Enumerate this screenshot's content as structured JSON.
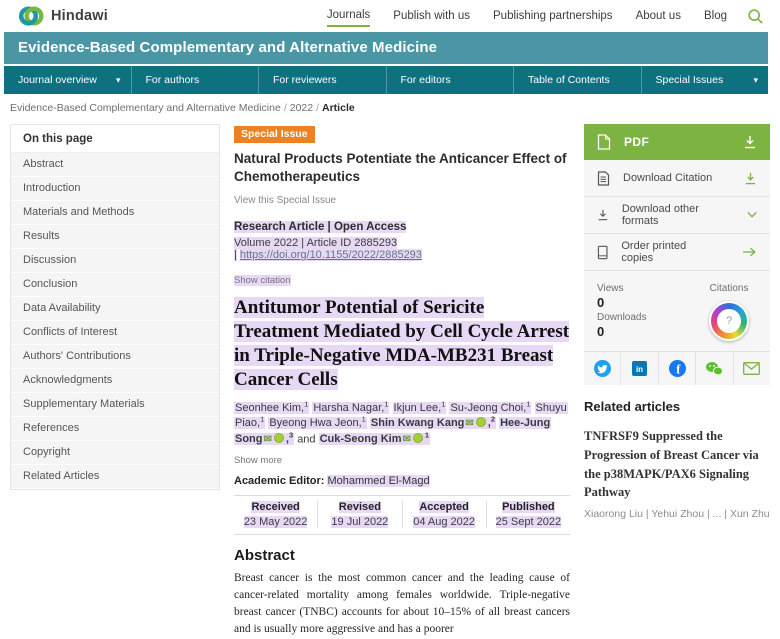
{
  "colors": {
    "accent_green": "#7db343",
    "banner_teal": "#4a96a4",
    "nav_teal": "#0e7180",
    "badge_orange": "#ee8223",
    "highlight_lavender": "#e7d9f5",
    "twitter_blue": "#1da1f2",
    "linkedin_blue": "#0a77b5",
    "facebook_blue": "#1877f2",
    "wechat_green": "#57c22d"
  },
  "icons": {
    "chevron_down": "▾",
    "envelope": "✉",
    "arrow_right": "→"
  },
  "header": {
    "brand": "Hindawi",
    "nav": [
      {
        "label": "Journals",
        "active": true
      },
      {
        "label": "Publish with us",
        "active": false
      },
      {
        "label": "Publishing partnerships",
        "active": false
      },
      {
        "label": "About us",
        "active": false
      },
      {
        "label": "Blog",
        "active": false
      }
    ]
  },
  "journal": {
    "title": "Evidence-Based Complementary and Alternative Medicine"
  },
  "journal_nav": {
    "items": [
      {
        "label": "Journal overview",
        "chevron": true
      },
      {
        "label": "For authors",
        "chevron": false
      },
      {
        "label": "For reviewers",
        "chevron": false
      },
      {
        "label": "For editors",
        "chevron": false
      },
      {
        "label": "Table of Contents",
        "chevron": false
      },
      {
        "label": "Special Issues",
        "chevron": true
      }
    ]
  },
  "breadcrumb": {
    "parts": [
      {
        "label": "Evidence-Based Complementary and Alternative Medicine",
        "bold": false
      },
      {
        "label": "2022",
        "bold": false
      },
      {
        "label": "Article",
        "bold": true
      }
    ]
  },
  "sidebar": {
    "header": "On this page",
    "items": [
      "Abstract",
      "Introduction",
      "Materials and Methods",
      "Results",
      "Discussion",
      "Conclusion",
      "Data Availability",
      "Conflicts of Interest",
      "Authors' Contributions",
      "Acknowledgments",
      "Supplementary Materials",
      "References",
      "Copyright",
      "Related Articles"
    ]
  },
  "article": {
    "special_issue_badge": "Special Issue",
    "special_issue_title": "Natural Products Potentiate the Anticancer Effect of Chemotherapeutics",
    "special_issue_link": "View this Special Issue",
    "meta_line1": "Research Article | Open Access",
    "meta_line2_prefix": "Volume 2022 | Article ID 2885293 |",
    "doi": "https://doi.org/10.1155/2022/2885293",
    "show_citation": "Show citation",
    "title": "Antitumor Potential of Sericite Treatment Mediated by Cell Cycle Arrest in Triple-Negative MDA-MB231 Breast Cancer Cells",
    "authors": [
      {
        "name": "Seonhee Kim",
        "sup": "1",
        "comma": true,
        "bold": false,
        "mail": false,
        "orcid": false,
        "prefix": ""
      },
      {
        "name": "Harsha Nagar",
        "sup": "1",
        "comma": true,
        "bold": false,
        "mail": false,
        "orcid": false,
        "prefix": ""
      },
      {
        "name": "Ikjun Lee",
        "sup": "1",
        "comma": true,
        "bold": false,
        "mail": false,
        "orcid": false,
        "prefix": ""
      },
      {
        "name": "Su-Jeong Choi",
        "sup": "1",
        "comma": true,
        "bold": false,
        "mail": false,
        "orcid": false,
        "prefix": ""
      },
      {
        "name": "Shuyu Piao",
        "sup": "1",
        "comma": true,
        "bold": false,
        "mail": false,
        "orcid": false,
        "prefix": ""
      },
      {
        "name": "Byeong Hwa Jeon",
        "sup": "1",
        "comma": true,
        "bold": false,
        "mail": false,
        "orcid": false,
        "prefix": ""
      },
      {
        "name": "Shin Kwang Kang",
        "sup": "2",
        "comma": true,
        "bold": true,
        "mail": true,
        "orcid": true,
        "prefix": ""
      },
      {
        "name": "Hee-Jung Song",
        "sup": "3",
        "comma": true,
        "bold": true,
        "mail": true,
        "orcid": true,
        "prefix": ""
      },
      {
        "name": "Cuk-Seong Kim",
        "sup": "1",
        "comma": false,
        "bold": true,
        "mail": true,
        "orcid": true,
        "prefix": "and "
      }
    ],
    "show_more": "Show more",
    "editor_label": "Academic Editor:",
    "editor_name": "Mohammed El-Magd",
    "dates": [
      {
        "label": "Received",
        "value": "23 May 2022"
      },
      {
        "label": "Revised",
        "value": "19 Jul 2022"
      },
      {
        "label": "Accepted",
        "value": "04 Aug 2022"
      },
      {
        "label": "Published",
        "value": "25 Sept 2022"
      }
    ],
    "abstract_heading": "Abstract",
    "abstract_text": "Breast cancer is the most common cancer and the leading cause of cancer-related mortality among females worldwide. Triple-negative breast cancer (TNBC) accounts for about 10–15% of all breast cancers and is usually more aggressive and has a poorer"
  },
  "actions": {
    "pdf_label": "PDF",
    "download_citation": "Download Citation",
    "download_other_formats": "Download other formats",
    "order_printed_copies": "Order printed copies"
  },
  "metrics": {
    "views_label": "Views",
    "views_value": "0",
    "downloads_label": "Downloads",
    "downloads_value": "0",
    "citations_label": "Citations",
    "citations_badge": "?"
  },
  "social": {
    "icons": [
      "twitter",
      "linkedin",
      "facebook",
      "wechat",
      "email"
    ]
  },
  "related": {
    "heading": "Related articles",
    "article_title": "TNFRSF9 Suppressed the Progression of Breast Cancer via the p38MAPK/PAX6 Signaling Pathway",
    "article_authors": "Xiaorong Liu | Yehui Zhou | ... | Xun Zhu"
  }
}
